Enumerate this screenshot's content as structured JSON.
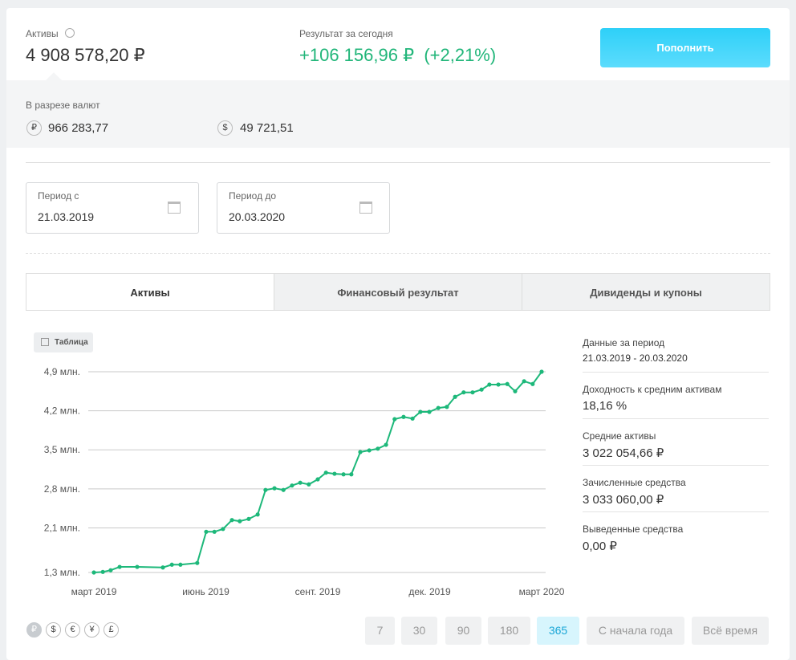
{
  "header": {
    "assets_label": "Активы",
    "assets_value": "4 908 578,20 ₽",
    "result_label": "Результат за сегодня",
    "result_value": "+106 156,96 ₽",
    "result_percent": "(+2,21%)",
    "deposit_button": "Пополнить"
  },
  "currencies": {
    "label": "В разрезе валют",
    "items": [
      {
        "symbol": "₽",
        "value": "966 283,77"
      },
      {
        "symbol": "$",
        "value": "49 721,51"
      }
    ]
  },
  "period": {
    "from_label": "Период с",
    "from_value": "21.03.2019",
    "to_label": "Период до",
    "to_value": "20.03.2020"
  },
  "tabs": {
    "items": [
      "Активы",
      "Финансовый результат",
      "Дивиденды и купоны"
    ],
    "active": 0
  },
  "table_button": "Таблица",
  "chart_data": {
    "type": "line",
    "color": "#1db87a",
    "grid": true,
    "x": [
      0,
      0.24,
      0.45,
      0.69,
      1.16,
      1.85,
      2.09,
      2.32,
      2.77,
      3.01,
      3.23,
      3.46,
      3.7,
      3.91,
      4.15,
      4.39,
      4.6,
      4.84,
      5.08,
      5.31,
      5.53,
      5.76,
      6,
      6.22,
      6.45,
      6.69,
      6.9,
      7.14,
      7.38,
      7.61,
      7.83,
      8.06,
      8.3,
      8.54,
      8.75,
      8.99,
      9.23,
      9.46,
      9.68,
      9.91,
      10.15,
      10.39,
      10.6,
      10.84,
      11.08,
      11.29,
      11.53,
      11.76,
      12
    ],
    "values": [
      1.3,
      1.31,
      1.34,
      1.4,
      1.4,
      1.39,
      1.44,
      1.44,
      1.47,
      2.03,
      2.03,
      2.08,
      2.24,
      2.22,
      2.26,
      2.34,
      2.78,
      2.81,
      2.78,
      2.86,
      2.91,
      2.88,
      2.97,
      3.09,
      3.07,
      3.06,
      3.06,
      3.46,
      3.49,
      3.52,
      3.59,
      4.05,
      4.09,
      4.06,
      4.18,
      4.18,
      4.25,
      4.27,
      4.45,
      4.53,
      4.53,
      4.58,
      4.67,
      4.67,
      4.68,
      4.55,
      4.73,
      4.68,
      4.9
    ],
    "xlim": [
      0,
      12
    ],
    "xticks": [
      {
        "value": 0,
        "label": "март 2019"
      },
      {
        "value": 3,
        "label": "июнь 2019"
      },
      {
        "value": 6,
        "label": "сент. 2019"
      },
      {
        "value": 9,
        "label": "дек. 2019"
      },
      {
        "value": 12,
        "label": "март 2020"
      }
    ],
    "ylim": [
      1.3,
      4.9
    ],
    "yticks": [
      {
        "value": 1.3,
        "label": "1,3 млн."
      },
      {
        "value": 2.1,
        "label": "2,1 млн."
      },
      {
        "value": 2.8,
        "label": "2,8 млн."
      },
      {
        "value": 3.5,
        "label": "3,5 млн."
      },
      {
        "value": 4.2,
        "label": "4,2 млн."
      },
      {
        "value": 4.9,
        "label": "4,9 млн."
      }
    ]
  },
  "stats": [
    {
      "label": "Данные за период",
      "value": "21.03.2019 - 20.03.2020"
    },
    {
      "label": "Доходность к средним активам",
      "value": "18,16 %"
    },
    {
      "label": "Средние активы",
      "value": "3 022 054,66 ₽"
    },
    {
      "label": "Зачисленные средства",
      "value": "3 033 060,00 ₽"
    },
    {
      "label": "Выведенные средства",
      "value": "0,00 ₽"
    }
  ],
  "currency_buttons": {
    "items": [
      "₽",
      "$",
      "€",
      "¥",
      "£"
    ],
    "active": 0
  },
  "range_buttons": {
    "items": [
      "7",
      "30",
      "90",
      "180",
      "365",
      "С начала года",
      "Всё время"
    ],
    "active": 4
  }
}
